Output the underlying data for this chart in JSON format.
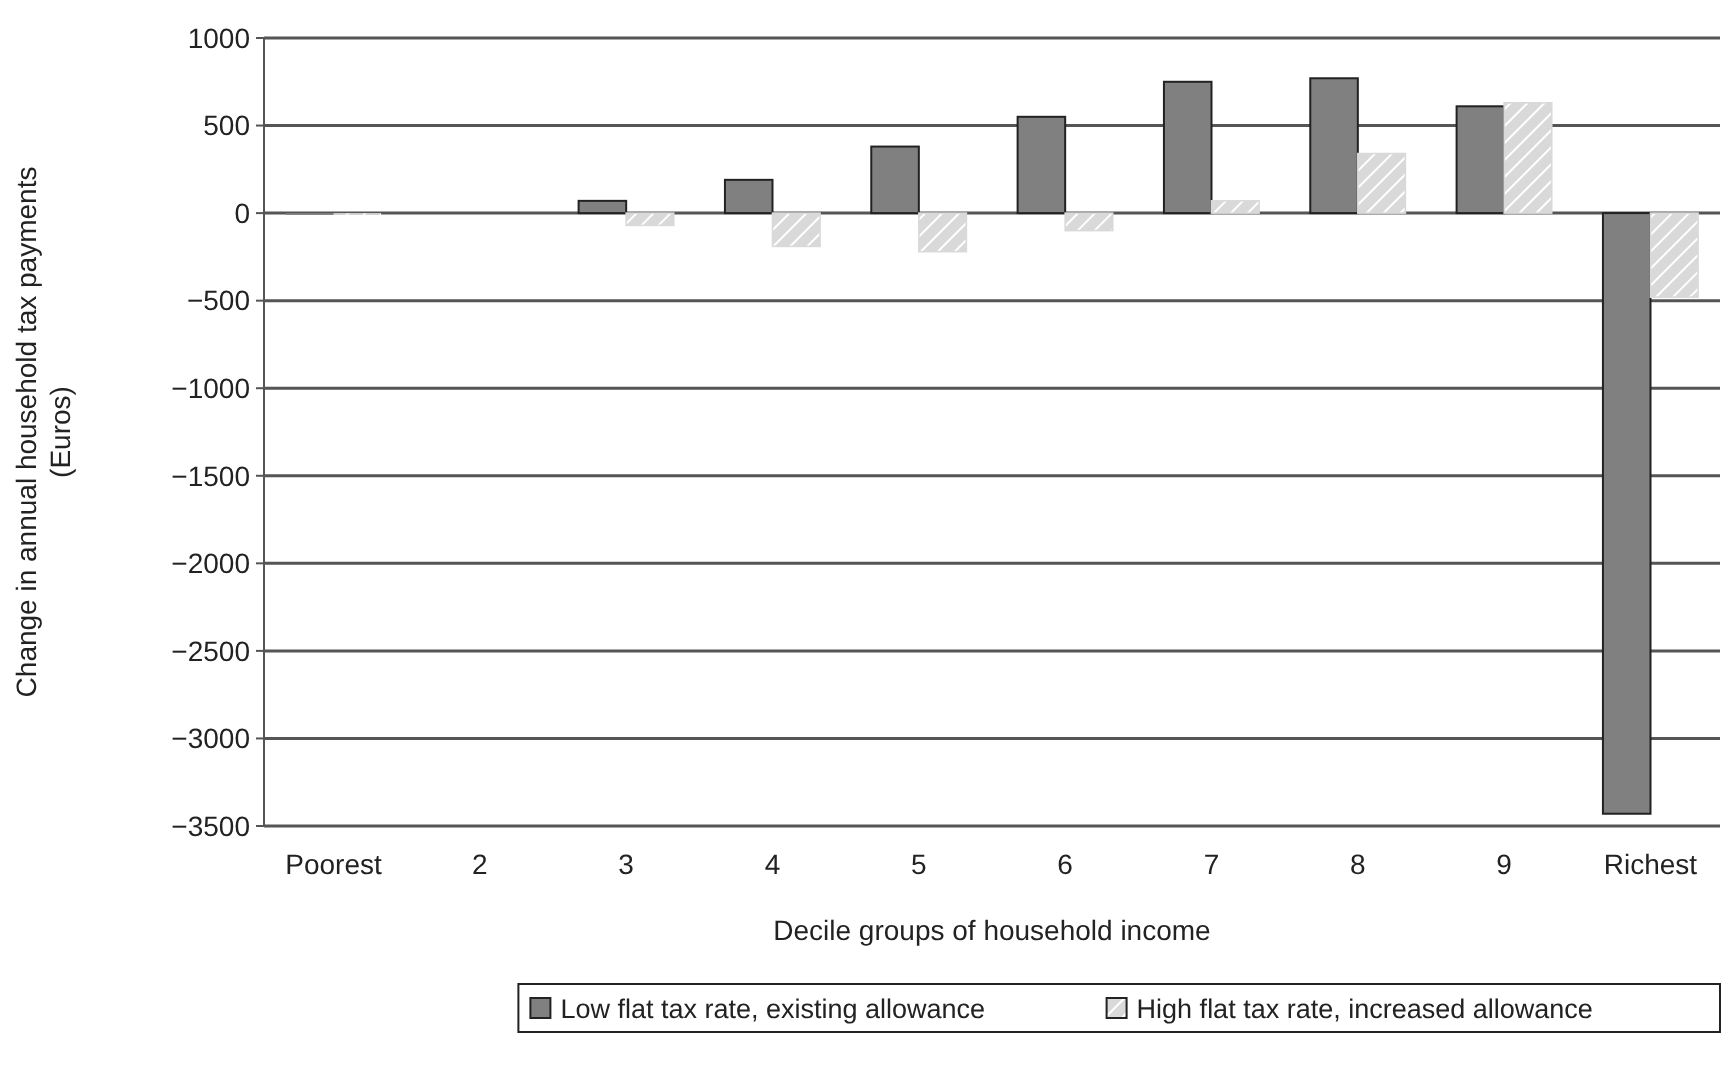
{
  "chart_data": {
    "type": "bar",
    "xlabel": "Decile groups of household income",
    "ylabel": "Change in annual household tax payments (Euros)",
    "categories": [
      "Poorest",
      "2",
      "3",
      "4",
      "5",
      "6",
      "7",
      "8",
      "9",
      "Richest"
    ],
    "series": [
      {
        "name": "Low flat tax rate, existing allowance",
        "color": "#808080",
        "values": [
          -10,
          0,
          70,
          190,
          380,
          550,
          750,
          770,
          610,
          -3430
        ]
      },
      {
        "name": "High flat tax rate, increased allowance",
        "color": "#d9d9d9",
        "values": [
          -10,
          0,
          -70,
          -190,
          -220,
          -100,
          70,
          340,
          630,
          -480
        ]
      }
    ],
    "ylim": [
      -3500,
      1000
    ],
    "yticks": [
      -3500,
      -3000,
      -2500,
      -2000,
      -1500,
      -1000,
      -500,
      0,
      500,
      1000
    ],
    "grid": "y",
    "legend": "bottom"
  }
}
